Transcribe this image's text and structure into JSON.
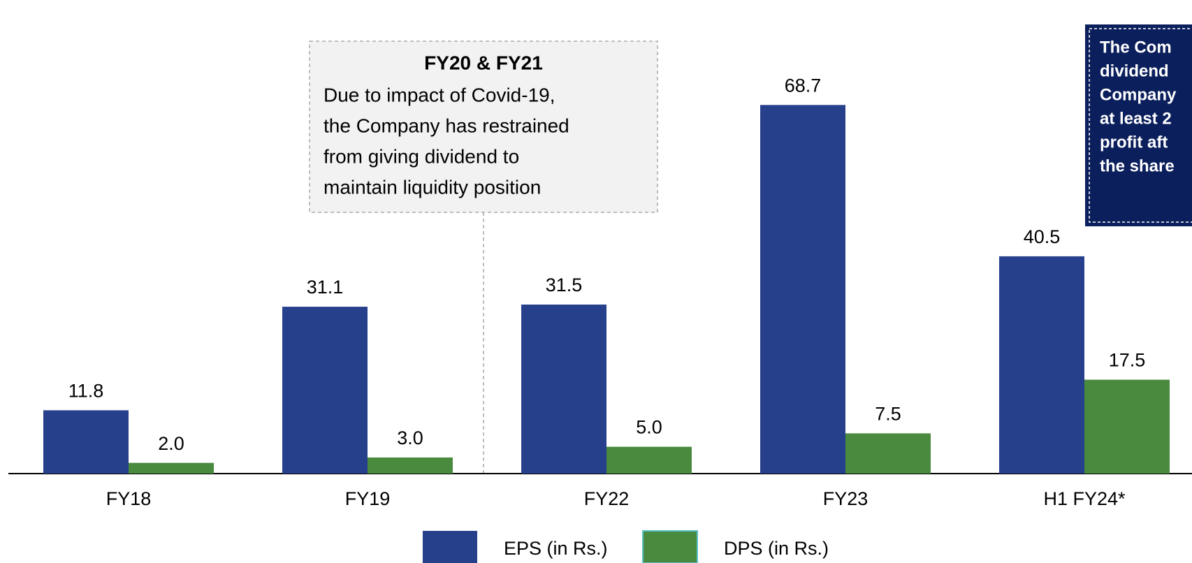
{
  "chart_data": {
    "type": "bar",
    "categories": [
      "FY18",
      "FY19",
      "FY22",
      "FY23",
      "H1 FY24*"
    ],
    "series": [
      {
        "name": "EPS (in Rs.)",
        "color": "#27408b",
        "values": [
          11.8,
          31.1,
          31.5,
          68.7,
          40.5
        ],
        "value_labels": [
          "11.8",
          "31.1",
          "31.5",
          "68.7",
          "40.5"
        ]
      },
      {
        "name": "DPS (in Rs.)",
        "color": "#4a8a3f",
        "values": [
          2.0,
          3.0,
          5.0,
          7.5,
          17.5
        ],
        "value_labels": [
          "2.0",
          "3.0",
          "5.0",
          "7.5",
          "17.5"
        ]
      }
    ],
    "annotation": {
      "title": "FY20 & FY21",
      "lines": [
        "Due to impact of Covid-19,",
        "the Company has restrained",
        "from giving dividend to",
        "maintain liquidity position"
      ]
    },
    "side_note": {
      "lines": [
        "The Com",
        "dividend",
        "Company",
        "at least 2",
        "profit aft",
        "the share"
      ]
    }
  }
}
